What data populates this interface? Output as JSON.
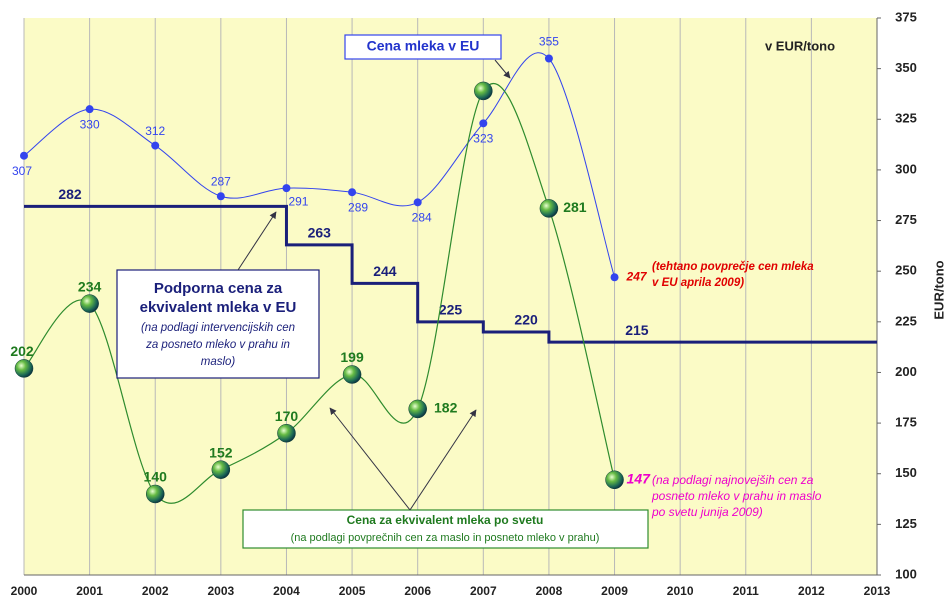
{
  "chart_data": {
    "type": "line",
    "unit_label": "v EUR/tono",
    "y_axis_label": "EUR/tono",
    "xlim": [
      2000,
      2013
    ],
    "xticks": [
      2000,
      2001,
      2002,
      2003,
      2004,
      2005,
      2006,
      2007,
      2008,
      2009,
      2010,
      2011,
      2012,
      2013
    ],
    "ylim": [
      100,
      375
    ],
    "yticks": [
      100,
      125,
      150,
      175,
      200,
      225,
      250,
      275,
      300,
      325,
      350,
      375
    ],
    "grid": "vertical",
    "background": "#fbfbc6",
    "series": [
      {
        "name": "Cena mleka v EU",
        "color": "#3344ee",
        "style": "smooth",
        "marker": "dot",
        "x": [
          2000,
          2001,
          2002,
          2003,
          2004,
          2005,
          2006,
          2007,
          2008,
          2009
        ],
        "values": [
          307,
          330,
          312,
          287,
          291,
          289,
          284,
          323,
          355,
          247
        ],
        "last_label_color": "#e00000"
      },
      {
        "name": "Podporna cena za ekvivalent mleka v EU",
        "color": "#1a1f7a",
        "style": "step",
        "x": [
          2000,
          2004,
          2005,
          2006,
          2007,
          2008
        ],
        "values": [
          282,
          263,
          244,
          225,
          220,
          215
        ]
      },
      {
        "name": "Cena za ekvivalent mleka po svetu",
        "color": "#2e8b2e",
        "style": "smooth",
        "marker": "globe",
        "x": [
          2000,
          2001,
          2002,
          2003,
          2004,
          2005,
          2006,
          2007,
          2008,
          2009
        ],
        "values": [
          202,
          234,
          140,
          152,
          170,
          199,
          182,
          339,
          281,
          147
        ],
        "value_labels": [
          "202",
          "234",
          "140",
          "152",
          "170",
          "199",
          "182",
          null,
          "281",
          "147"
        ],
        "last_label_color": "#ee00cc"
      }
    ],
    "annotations": {
      "eu_box": "Cena mleka v EU",
      "support_box": [
        "Podporna cena za",
        "ekvivalent mleka v EU"
      ],
      "support_note": [
        "(na podlagi intervencijskih cen",
        "za posneto mleko v prahu in",
        "maslo)"
      ],
      "world_box": "Cena za ekvivalent mleka po svetu",
      "world_note": "(na podlagi povprečnih cen za maslo in posneto mleko v prahu)",
      "eu_april": [
        "(tehtano povprečje cen mleka",
        "v EU aprila 2009)"
      ],
      "world_june": [
        "(na podlagi najnovejših cen za",
        "posneto mleko v prahu in maslo",
        "po svetu junija 2009)"
      ]
    }
  }
}
